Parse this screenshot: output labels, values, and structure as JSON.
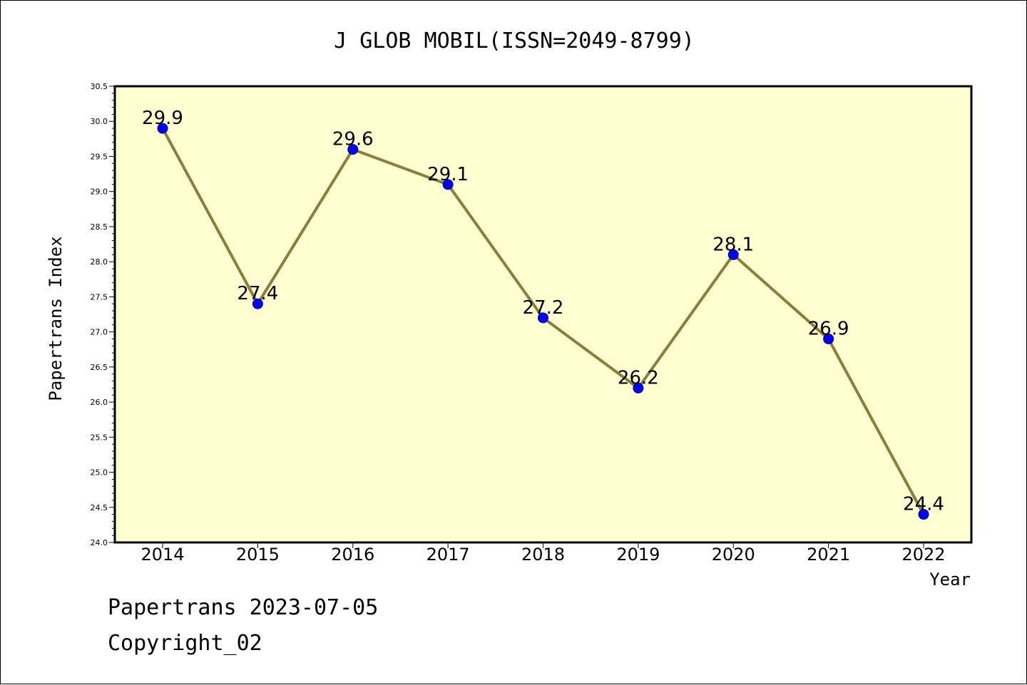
{
  "chart_data": {
    "type": "line",
    "title": "J GLOB MOBIL(ISSN=2049-8799)",
    "xlabel": "Year",
    "ylabel": "Papertrans Index",
    "categories": [
      "2014",
      "2015",
      "2016",
      "2017",
      "2018",
      "2019",
      "2020",
      "2021",
      "2022"
    ],
    "values": [
      29.9,
      27.4,
      29.6,
      29.1,
      27.2,
      26.2,
      28.1,
      26.9,
      24.4
    ],
    "data_labels": [
      "29.9",
      "27.4",
      "29.6",
      "29.1",
      "27.2",
      "26.2",
      "28.1",
      "26.9",
      "24.4"
    ],
    "ylim": [
      24.0,
      30.5
    ],
    "yticks": [
      "24.0",
      "24.5",
      "25.0",
      "25.5",
      "26.0",
      "26.5",
      "27.0",
      "27.5",
      "28.0",
      "28.5",
      "29.0",
      "29.5",
      "30.0",
      "30.5"
    ],
    "grid": false,
    "legend": "none",
    "colors": {
      "plot_background": "#ffffd0",
      "line": "#8b7d3a",
      "marker": "#0000ff",
      "marker_edge": "#00008b"
    }
  },
  "footer": {
    "date_line": "Papertrans 2023-07-05",
    "copyright_line": "Copyright_02"
  }
}
